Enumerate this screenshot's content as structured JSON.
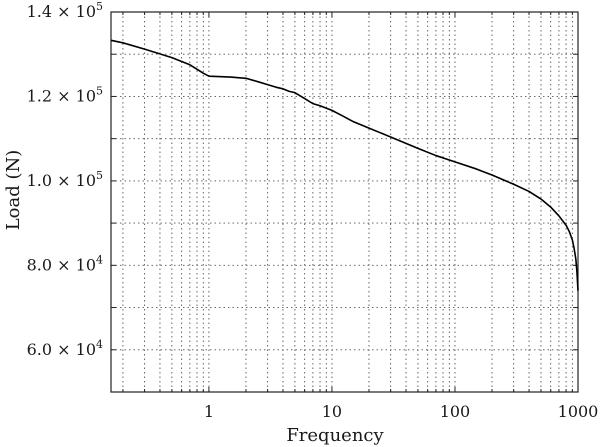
{
  "chart_data": {
    "type": "line",
    "title": "",
    "xlabel": "Frequency",
    "ylabel": "Load (N)",
    "xscale": "log",
    "xlim": [
      0.16,
      1000
    ],
    "ylim": [
      50000,
      140000
    ],
    "grid": true,
    "legend": "none",
    "line_color": "#000000",
    "x_ticks": [
      {
        "value": 1,
        "label": "1"
      },
      {
        "value": 10,
        "label": "10"
      },
      {
        "value": 100,
        "label": "100"
      },
      {
        "value": 1000,
        "label": "1000"
      }
    ],
    "y_ticks": [
      {
        "value": 60000,
        "mantissa": "6.0",
        "exponent": "4"
      },
      {
        "value": 80000,
        "mantissa": "8.0",
        "exponent": "4"
      },
      {
        "value": 100000,
        "mantissa": "1.0",
        "exponent": "5"
      },
      {
        "value": 120000,
        "mantissa": "1.2",
        "exponent": "5"
      },
      {
        "value": 140000,
        "mantissa": "1.4",
        "exponent": "5"
      }
    ],
    "y_gridlines": [
      70000,
      90000,
      110000,
      130000
    ],
    "series": [
      {
        "x": [
          0.16,
          0.2,
          0.3,
          0.5,
          0.7,
          0.9,
          1.0,
          1.5,
          2.0,
          2.5,
          3.0,
          3.5,
          4.0,
          4.5,
          5.0,
          6.0,
          7.0,
          8.0,
          10,
          12,
          15,
          20,
          30,
          50,
          70,
          100,
          150,
          200,
          300,
          400,
          500,
          600,
          700,
          800,
          850,
          900,
          930,
          960,
          980,
          1000
        ],
        "y": [
          133300,
          132700,
          131200,
          129200,
          127500,
          125500,
          124800,
          124600,
          124300,
          123500,
          122800,
          122200,
          121800,
          121200,
          120900,
          119500,
          118300,
          117800,
          116700,
          115500,
          114000,
          112500,
          110400,
          107700,
          106000,
          104500,
          102800,
          101400,
          99200,
          97500,
          95700,
          93800,
          91700,
          89500,
          88000,
          86000,
          84000,
          81500,
          78500,
          74000
        ]
      }
    ]
  }
}
